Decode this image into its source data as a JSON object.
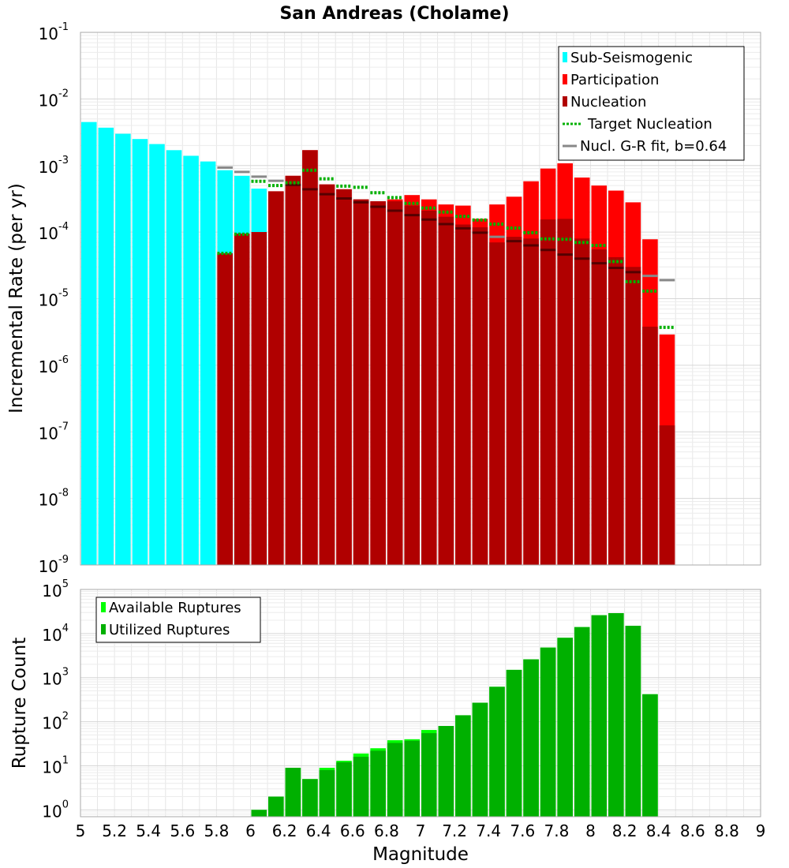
{
  "chart_data": [
    {
      "type": "bar",
      "title": "San Andreas (Cholame)",
      "ylabel": "Incremental Rate (per yr)",
      "xlabel": "",
      "y_scale": "log",
      "ylim": [
        1e-09,
        0.1
      ],
      "xlim": [
        5,
        9
      ],
      "y_tick_labels": [
        {
          "base": "10",
          "exp": "-9"
        },
        {
          "base": "10",
          "exp": "-8"
        },
        {
          "base": "10",
          "exp": "-7"
        },
        {
          "base": "10",
          "exp": "-6"
        },
        {
          "base": "10",
          "exp": "-5"
        },
        {
          "base": "10",
          "exp": "-4"
        },
        {
          "base": "10",
          "exp": "-3"
        },
        {
          "base": "10",
          "exp": "-2"
        },
        {
          "base": "10",
          "exp": "-1"
        }
      ],
      "grid": true,
      "legend_position": "top-right",
      "legend": [
        {
          "label": "Sub-Seismogenic",
          "color": "#00ffff",
          "kind": "bar"
        },
        {
          "label": "Participation",
          "color": "#ff0000",
          "kind": "bar"
        },
        {
          "label": "Nucleation",
          "color": "#b00000",
          "kind": "bar"
        },
        {
          "label": "Target Nucleation",
          "color": "#00b000",
          "kind": "dotted"
        },
        {
          "label": "Nucl. G-R fit, b=0.64",
          "color": "#888888",
          "kind": "line"
        }
      ],
      "bin_width": 0.1,
      "series": [
        {
          "name": "Sub-Seismogenic",
          "color": "#00ffff",
          "x": [
            5.0,
            5.1,
            5.2,
            5.3,
            5.4,
            5.5,
            5.6,
            5.7,
            5.8,
            5.9,
            6.0
          ],
          "values": [
            0.0045,
            0.0037,
            0.003,
            0.0025,
            0.0021,
            0.0017,
            0.0014,
            0.00115,
            0.00085,
            0.0007,
            0.00045
          ]
        },
        {
          "name": "Participation",
          "color": "#ff0000",
          "x": [
            5.8,
            5.9,
            6.0,
            6.1,
            6.2,
            6.3,
            6.4,
            6.5,
            6.6,
            6.7,
            6.8,
            6.9,
            7.0,
            7.1,
            7.2,
            7.3,
            7.4,
            7.5,
            7.6,
            7.7,
            7.8,
            7.9,
            8.0,
            8.1,
            8.2,
            8.3,
            8.4
          ],
          "values": [
            4.8e-05,
            9.5e-05,
            0.0001,
            0.00041,
            0.0007,
            0.0017,
            0.00052,
            0.00044,
            0.00031,
            0.00029,
            0.00031,
            0.00036,
            0.00031,
            0.00026,
            0.00025,
            0.000158,
            0.00026,
            0.00034,
            0.00058,
            0.0009,
            0.00108,
            0.00066,
            0.0005,
            0.00042,
            0.00028,
            7.8e-05,
            2.9e-06
          ]
        },
        {
          "name": "Nucleation",
          "color": "#b00000",
          "x": [
            5.8,
            5.9,
            6.0,
            6.1,
            6.2,
            6.3,
            6.4,
            6.5,
            6.6,
            6.7,
            6.8,
            6.9,
            7.0,
            7.1,
            7.2,
            7.3,
            7.4,
            7.5,
            7.6,
            7.7,
            7.8,
            7.9,
            8.0,
            8.1,
            8.2,
            8.3,
            8.4
          ],
          "values": [
            4.8e-05,
            9.5e-05,
            0.0001,
            0.00041,
            0.0007,
            0.0017,
            0.00052,
            0.00044,
            0.00031,
            0.00029,
            0.00029,
            0.00025,
            0.00021,
            0.00017,
            0.00013,
            0.000118,
            7e-05,
            8.5e-05,
            8e-05,
            0.000155,
            0.000158,
            8e-05,
            5.5e-05,
            4.2e-05,
            3e-05,
            3.8e-06,
            1.25e-07
          ]
        },
        {
          "name": "Target Nucleation",
          "color": "#00b000",
          "x": [
            5.8,
            5.9,
            6.0,
            6.1,
            6.2,
            6.3,
            6.4,
            6.5,
            6.6,
            6.7,
            6.8,
            6.9,
            7.0,
            7.1,
            7.2,
            7.3,
            7.4,
            7.5,
            7.6,
            7.7,
            7.8,
            7.9,
            8.0,
            8.1,
            8.2,
            8.3,
            8.4
          ],
          "values": [
            4.8e-05,
            9.3e-05,
            0.00058,
            0.0005,
            0.00055,
            0.00085,
            0.00063,
            0.00049,
            0.00047,
            0.00039,
            0.00033,
            0.00027,
            0.00023,
            0.0002,
            0.000172,
            0.000152,
            0.000132,
            0.000115,
            9.8e-05,
            7.9e-05,
            7.8e-05,
            7e-05,
            6.3e-05,
            3.6e-05,
            1.8e-05,
            1.3e-05,
            3.7e-06
          ]
        },
        {
          "name": "Nucl. G-R fit, b=0.64",
          "color": "#888888",
          "x": [
            5.8,
            5.9,
            6.0,
            6.1,
            6.2,
            6.3,
            6.4,
            6.5,
            6.6,
            6.7,
            6.8,
            6.9,
            7.0,
            7.1,
            7.2,
            7.3,
            7.4,
            7.5,
            7.6,
            7.7,
            7.8,
            7.9,
            8.0,
            8.1,
            8.2,
            8.3,
            8.4
          ],
          "values": [
            0.00093,
            0.0008,
            0.00068,
            0.00059,
            0.00051,
            0.00044,
            0.00037,
            0.00032,
            0.00028,
            0.00024,
            0.00021,
            0.00018,
            0.000154,
            0.000132,
            0.000114,
            9.8e-05,
            8.5e-05,
            7.3e-05,
            6.3e-05,
            5.4e-05,
            4.6e-05,
            4e-05,
            3.4e-05,
            2.9e-05,
            2.5e-05,
            2.2e-05,
            1.9e-05
          ]
        }
      ]
    },
    {
      "type": "bar",
      "title": "",
      "ylabel": "Rupture Count",
      "xlabel": "Magnitude",
      "y_scale": "log",
      "ylim": [
        0.7,
        100000
      ],
      "xlim": [
        5,
        9
      ],
      "x_tick_labels": [
        "5",
        "5.2",
        "5.4",
        "5.6",
        "5.8",
        "6",
        "6.2",
        "6.4",
        "6.6",
        "6.8",
        "7",
        "7.2",
        "7.4",
        "7.6",
        "7.8",
        "8",
        "8.2",
        "8.4",
        "8.6",
        "8.8",
        "9"
      ],
      "y_tick_labels": [
        {
          "base": "10",
          "exp": "0"
        },
        {
          "base": "10",
          "exp": "1"
        },
        {
          "base": "10",
          "exp": "2"
        },
        {
          "base": "10",
          "exp": "3"
        },
        {
          "base": "10",
          "exp": "4"
        },
        {
          "base": "10",
          "exp": "5"
        }
      ],
      "grid": true,
      "legend_position": "top-left",
      "legend": [
        {
          "label": "Available Ruptures",
          "color": "#00ff00",
          "kind": "bar"
        },
        {
          "label": "Utilized Ruptures",
          "color": "#00b000",
          "kind": "bar"
        }
      ],
      "bin_width": 0.1,
      "series": [
        {
          "name": "Available Ruptures",
          "color": "#00ff00",
          "x": [
            6.0,
            6.1,
            6.2,
            6.3,
            6.4,
            6.5,
            6.6,
            6.7,
            6.8,
            6.9,
            7.0,
            7.1,
            7.2,
            7.3,
            7.4,
            7.5,
            7.6,
            7.7,
            7.8,
            7.9,
            8.0,
            8.1,
            8.2,
            8.3
          ],
          "values": [
            1,
            2,
            9,
            5,
            9,
            13,
            19,
            25,
            38,
            40,
            65,
            80,
            140,
            270,
            620,
            1500,
            2600,
            4800,
            8000,
            14000,
            26000,
            29000,
            15000,
            420
          ]
        },
        {
          "name": "Utilized Ruptures",
          "color": "#00b000",
          "x": [
            6.0,
            6.1,
            6.2,
            6.3,
            6.4,
            6.5,
            6.6,
            6.7,
            6.8,
            6.9,
            7.0,
            7.1,
            7.2,
            7.3,
            7.4,
            7.5,
            7.6,
            7.7,
            7.8,
            7.9,
            8.0,
            8.1,
            8.2,
            8.3
          ],
          "values": [
            1,
            2,
            9,
            5,
            8,
            12,
            16,
            22,
            33,
            37,
            55,
            80,
            140,
            270,
            620,
            1500,
            2600,
            4800,
            8000,
            14000,
            26000,
            29000,
            15000,
            420
          ]
        }
      ]
    }
  ]
}
